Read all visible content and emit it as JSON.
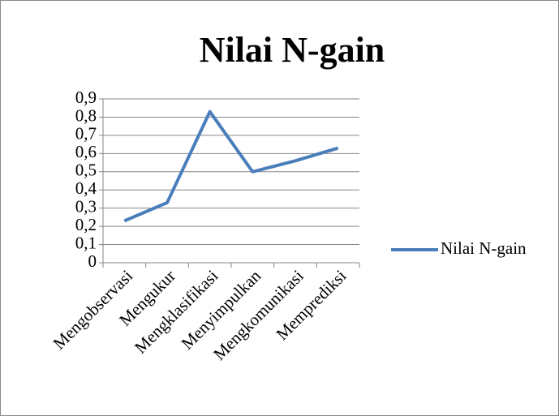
{
  "chart_data": {
    "type": "line",
    "title": "Nilai N-gain",
    "categories": [
      "Mengobservasi",
      "Mengukur",
      "Mengklasifikasi",
      "Menyimpulkan",
      "Mengkomunikasi",
      "Memprediksi"
    ],
    "series": [
      {
        "name": "Nilai N-gain",
        "color": "#4a7ebb",
        "values": [
          0.23,
          0.33,
          0.83,
          0.5,
          0.56,
          0.63
        ]
      }
    ],
    "ylim": [
      0,
      0.9
    ],
    "yticks": [
      0,
      {
        "value": 0.1,
        "label": "0,1"
      },
      {
        "value": 0.2,
        "label": "0,2"
      },
      {
        "value": 0.3,
        "label": "0,3"
      },
      {
        "value": 0.4,
        "label": "0,4"
      },
      {
        "value": 0.5,
        "label": "0,5"
      },
      {
        "value": 0.6,
        "label": "0,6"
      },
      {
        "value": 0.7,
        "label": "0,7"
      },
      {
        "value": 0.8,
        "label": "0,8"
      },
      {
        "value": 0.9,
        "label": "0,9"
      }
    ],
    "grid": true,
    "legend": "right"
  }
}
